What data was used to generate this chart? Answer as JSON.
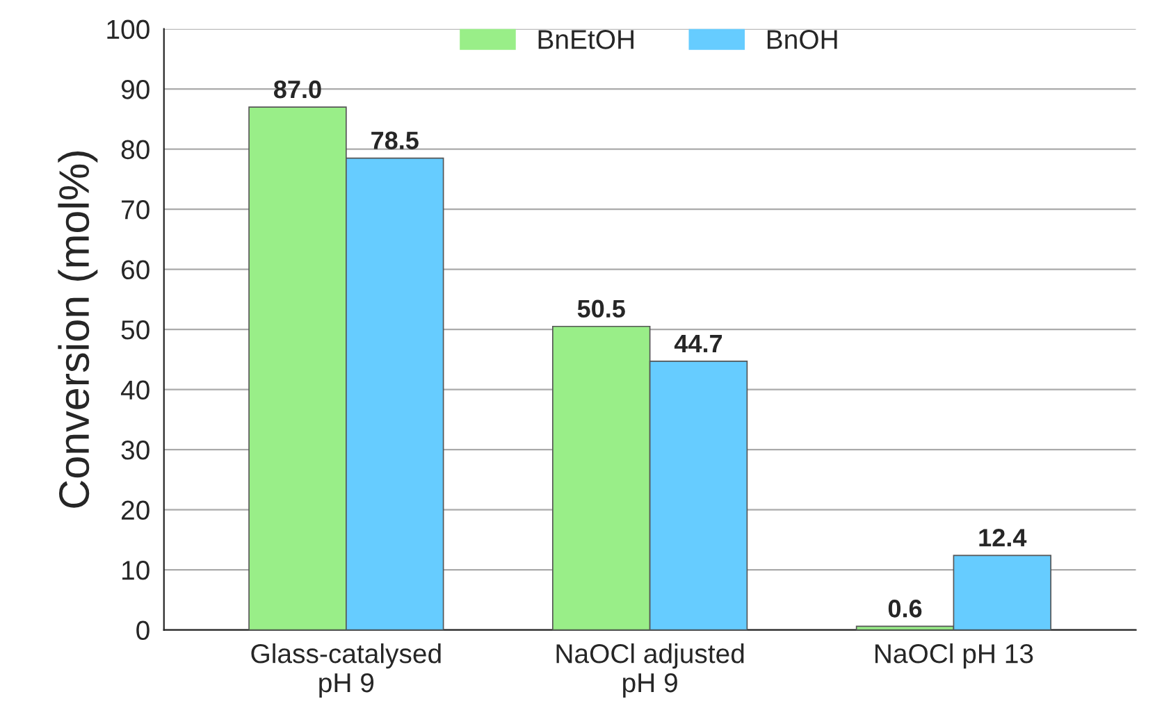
{
  "chart_data": {
    "type": "bar",
    "ylabel": "Conversion (mol%)",
    "categories": [
      "Glass-catalysed\npH 9",
      "NaOCl adjusted\npH 9",
      "NaOCl pH 13"
    ],
    "series": [
      {
        "name": "BnEtOH",
        "color": "#99ee88",
        "values": [
          87.0,
          50.5,
          0.6
        ]
      },
      {
        "name": "BnOH",
        "color": "#66ccff",
        "values": [
          78.5,
          44.7,
          12.4
        ]
      }
    ],
    "value_labels": [
      [
        "87.0",
        "50.5",
        "0.6"
      ],
      [
        "78.5",
        "44.7",
        "12.4"
      ]
    ],
    "ylim": [
      0,
      100
    ],
    "yticks": [
      0,
      10,
      20,
      30,
      40,
      50,
      60,
      70,
      80,
      90,
      100
    ],
    "grid": "y",
    "legend": "top"
  }
}
